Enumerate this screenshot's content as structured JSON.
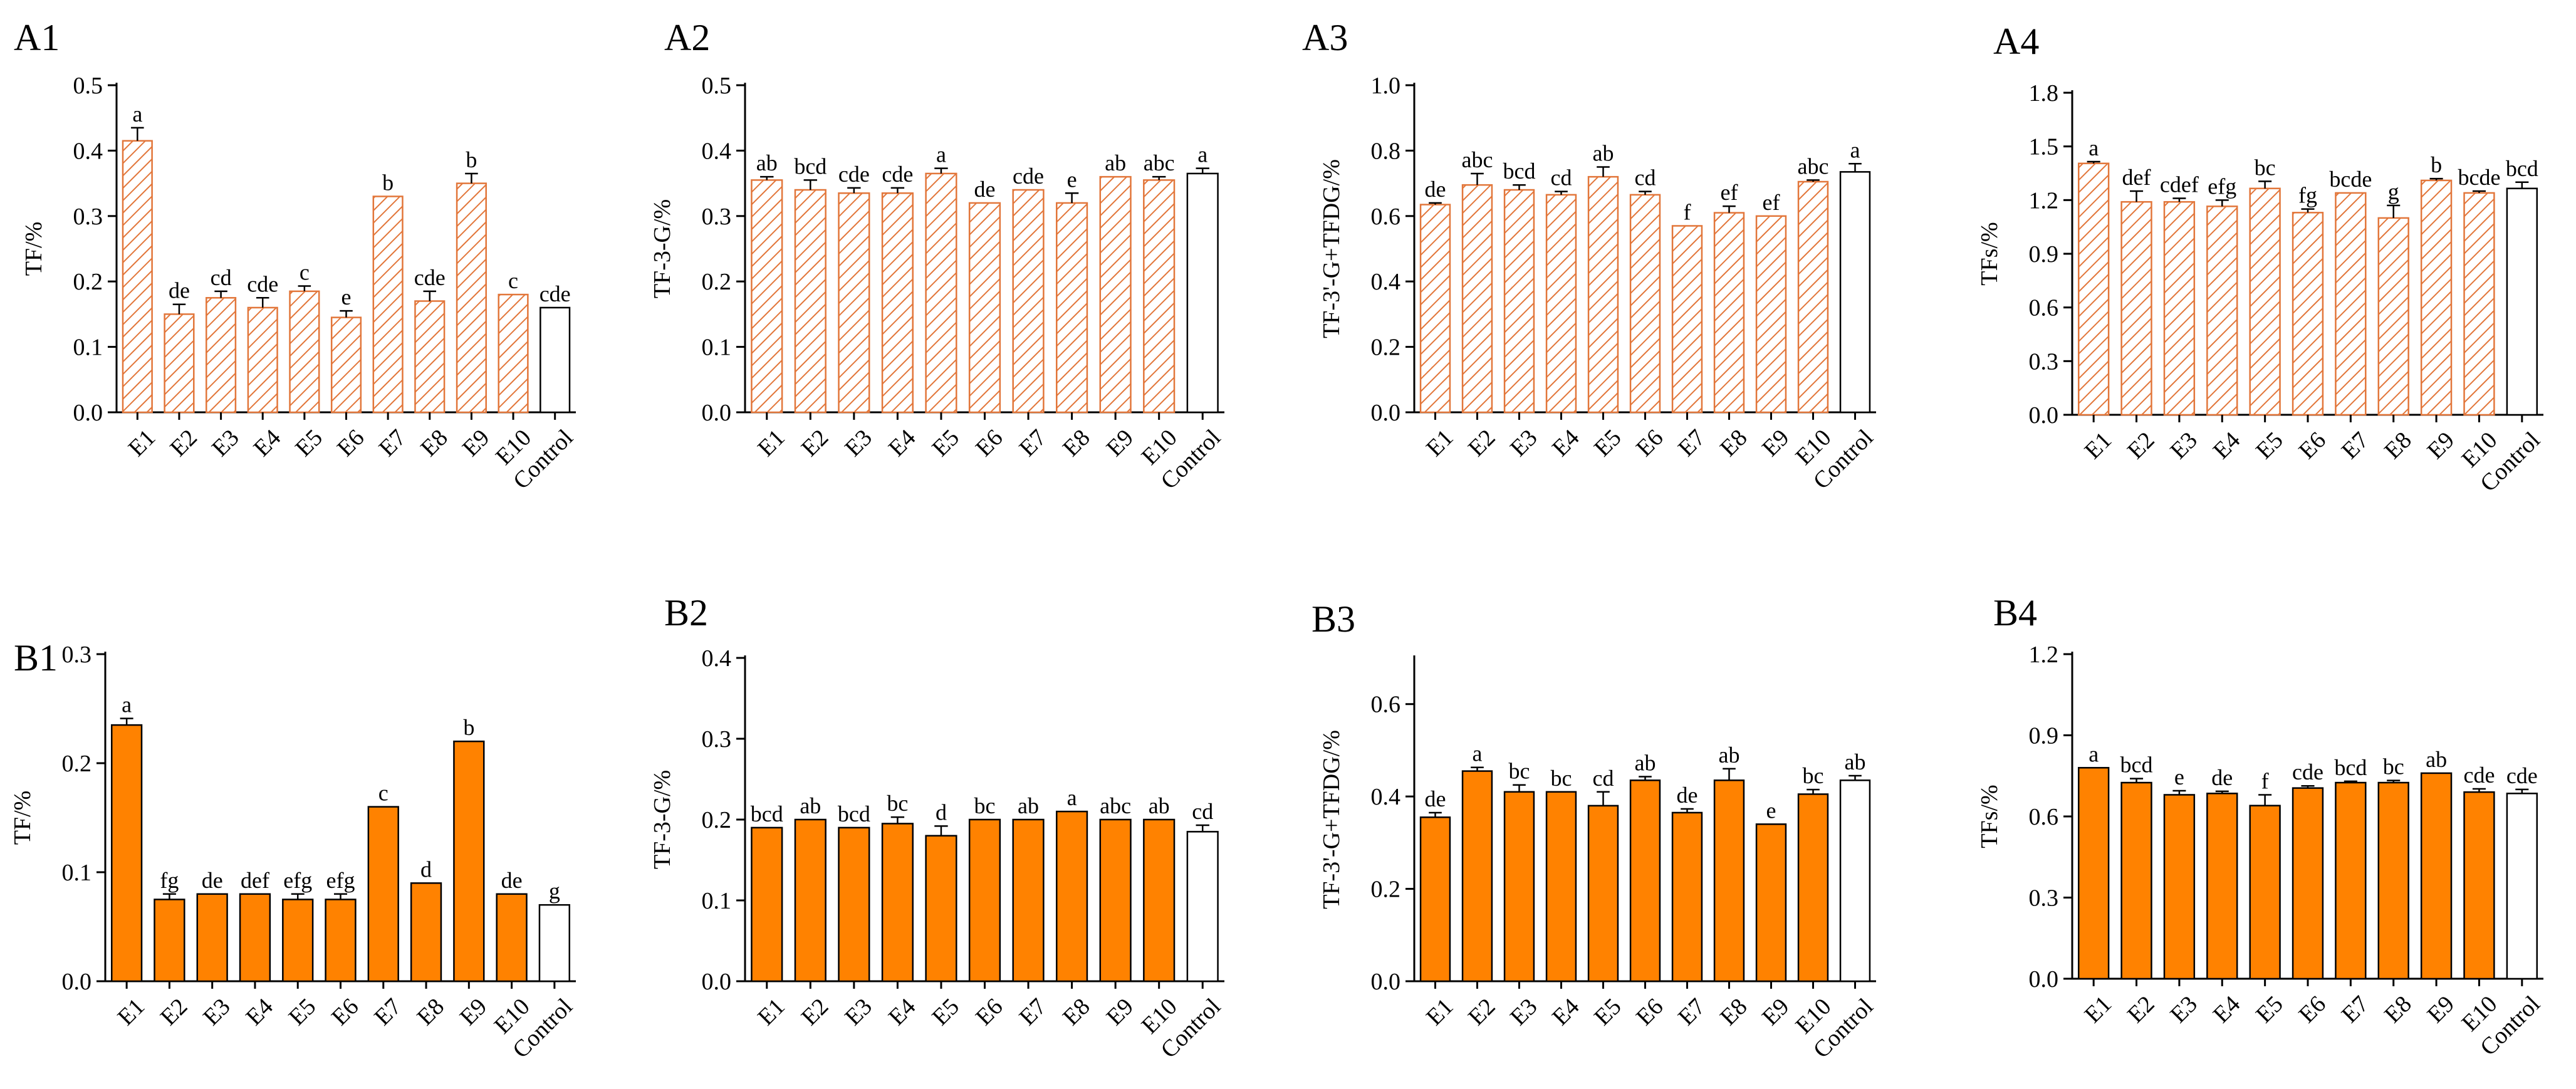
{
  "colors": {
    "hatch_stroke": "#E2763A",
    "hatch_fill": "#FFFFFF",
    "solid_fill": "#FF8200",
    "control_fill": "#FFFFFF",
    "axis": "#000000"
  },
  "chart_data": [
    {
      "panel": "A1",
      "type": "bar",
      "fill": "hatched",
      "ylabel": "TF/%",
      "ylim": [
        0,
        0.5
      ],
      "yticks": [
        "0.0",
        "0.1",
        "0.2",
        "0.3",
        "0.4",
        "0.5"
      ],
      "categories": [
        "E1",
        "E2",
        "E3",
        "E4",
        "E5",
        "E6",
        "E7",
        "E8",
        "E9",
        "E10",
        "Control"
      ],
      "values": [
        0.415,
        0.15,
        0.175,
        0.16,
        0.185,
        0.145,
        0.33,
        0.17,
        0.35,
        0.18,
        0.16
      ],
      "errors": [
        0.02,
        0.015,
        0.01,
        0.015,
        0.008,
        0.01,
        0,
        0.015,
        0.015,
        0,
        0
      ],
      "labels": [
        "a",
        "de",
        "cd",
        "cde",
        "c",
        "e",
        "b",
        "cde",
        "b",
        "c",
        "cde"
      ]
    },
    {
      "panel": "A2",
      "type": "bar",
      "fill": "hatched",
      "ylabel": "TF-3-G/%",
      "ylim": [
        0,
        0.5
      ],
      "yticks": [
        "0.0",
        "0.1",
        "0.2",
        "0.3",
        "0.4",
        "0.5"
      ],
      "categories": [
        "E1",
        "E2",
        "E3",
        "E4",
        "E5",
        "E6",
        "E7",
        "E8",
        "E9",
        "E10",
        "Control"
      ],
      "values": [
        0.355,
        0.34,
        0.335,
        0.335,
        0.365,
        0.32,
        0.34,
        0.32,
        0.36,
        0.355,
        0.365
      ],
      "errors": [
        0.005,
        0.015,
        0.008,
        0.008,
        0.008,
        0,
        0,
        0.015,
        0,
        0.005,
        0.008
      ],
      "labels": [
        "ab",
        "bcd",
        "cde",
        "cde",
        "a",
        "de",
        "cde",
        "e",
        "ab",
        "abc",
        "a"
      ]
    },
    {
      "panel": "A3",
      "type": "bar",
      "fill": "hatched",
      "ylabel": "TF-3'-G+TFDG/%",
      "ylim": [
        0,
        1.0
      ],
      "yticks": [
        "0.0",
        "0.2",
        "0.4",
        "0.6",
        "0.8",
        "1.0"
      ],
      "categories": [
        "E1",
        "E2",
        "E3",
        "E4",
        "E5",
        "E6",
        "E7",
        "E8",
        "E9",
        "E10",
        "Control"
      ],
      "values": [
        0.635,
        0.695,
        0.68,
        0.665,
        0.72,
        0.665,
        0.57,
        0.61,
        0.6,
        0.705,
        0.735
      ],
      "errors": [
        0.005,
        0.035,
        0.015,
        0.01,
        0.03,
        0.01,
        0,
        0.02,
        0,
        0.005,
        0.025
      ],
      "labels": [
        "de",
        "abc",
        "bcd",
        "cd",
        "ab",
        "cd",
        "f",
        "ef",
        "ef",
        "abc",
        "a"
      ]
    },
    {
      "panel": "A4",
      "type": "bar",
      "fill": "hatched",
      "ylabel": "TFs/%",
      "ylim": [
        0,
        1.8
      ],
      "yticks": [
        "0.0",
        "0.3",
        "0.6",
        "0.9",
        "1.2",
        "1.5",
        "1.8"
      ],
      "categories": [
        "E1",
        "E2",
        "E3",
        "E4",
        "E5",
        "E6",
        "E7",
        "E8",
        "E9",
        "E10",
        "Control"
      ],
      "values": [
        1.405,
        1.19,
        1.19,
        1.165,
        1.265,
        1.13,
        1.24,
        1.1,
        1.31,
        1.24,
        1.265
      ],
      "errors": [
        0.01,
        0.06,
        0.02,
        0.035,
        0.04,
        0.02,
        0,
        0.07,
        0.01,
        0.01,
        0.035
      ],
      "labels": [
        "a",
        "def",
        "cdef",
        "efg",
        "bc",
        "fg",
        "bcde",
        "g",
        "b",
        "bcde",
        "bcd"
      ]
    },
    {
      "panel": "B1",
      "type": "bar",
      "fill": "solid",
      "ylabel": "TF/%",
      "ylim": [
        0,
        0.3
      ],
      "yticks": [
        "0.0",
        "0.1",
        "0.2",
        "0.3"
      ],
      "categories": [
        "E1",
        "E2",
        "E3",
        "E4",
        "E5",
        "E6",
        "E7",
        "E8",
        "E9",
        "E10",
        "Control"
      ],
      "values": [
        0.235,
        0.075,
        0.08,
        0.08,
        0.075,
        0.075,
        0.16,
        0.09,
        0.22,
        0.08,
        0.07
      ],
      "errors": [
        0.006,
        0.005,
        0,
        0,
        0.005,
        0.005,
        0,
        0,
        0,
        0,
        0
      ],
      "labels": [
        "a",
        "fg",
        "de",
        "def",
        "efg",
        "efg",
        "c",
        "d",
        "b",
        "de",
        "g"
      ]
    },
    {
      "panel": "B2",
      "type": "bar",
      "fill": "solid",
      "ylabel": "TF-3-G/%",
      "ylim": [
        0,
        0.4
      ],
      "yticks": [
        "0.0",
        "0.1",
        "0.2",
        "0.3",
        "0.4"
      ],
      "categories": [
        "E1",
        "E2",
        "E3",
        "E4",
        "E5",
        "E6",
        "E7",
        "E8",
        "E9",
        "E10",
        "Control"
      ],
      "values": [
        0.19,
        0.2,
        0.19,
        0.195,
        0.18,
        0.2,
        0.2,
        0.21,
        0.2,
        0.2,
        0.185
      ],
      "errors": [
        0,
        0,
        0,
        0.008,
        0.012,
        0,
        0,
        0,
        0,
        0,
        0.008
      ],
      "labels": [
        "bcd",
        "ab",
        "bcd",
        "bc",
        "d",
        "bc",
        "ab",
        "a",
        "abc",
        "ab",
        "cd"
      ]
    },
    {
      "panel": "B3",
      "type": "bar",
      "fill": "solid",
      "ylabel": "TF-3'-G+TFDG/%",
      "ylim": [
        0,
        0.7
      ],
      "yticks": [
        "0.0",
        "0.2",
        "0.4",
        "0.6"
      ],
      "categories": [
        "E1",
        "E2",
        "E3",
        "E4",
        "E5",
        "E6",
        "E7",
        "E8",
        "E9",
        "E10",
        "Control"
      ],
      "values": [
        0.355,
        0.455,
        0.41,
        0.41,
        0.38,
        0.435,
        0.365,
        0.435,
        0.34,
        0.405,
        0.435
      ],
      "errors": [
        0.01,
        0.008,
        0.015,
        0,
        0.03,
        0.008,
        0.008,
        0.025,
        0,
        0.01,
        0.01
      ],
      "labels": [
        "de",
        "a",
        "bc",
        "bc",
        "cd",
        "ab",
        "de",
        "ab",
        "e",
        "bc",
        "ab"
      ]
    },
    {
      "panel": "B4",
      "type": "bar",
      "fill": "solid",
      "ylabel": "TFs/%",
      "ylim": [
        0,
        1.2
      ],
      "yticks": [
        "0.0",
        "0.3",
        "0.6",
        "0.9",
        "1.2"
      ],
      "categories": [
        "E1",
        "E2",
        "E3",
        "E4",
        "E5",
        "E6",
        "E7",
        "E8",
        "E9",
        "E10",
        "Control"
      ],
      "values": [
        0.78,
        0.725,
        0.68,
        0.685,
        0.64,
        0.705,
        0.725,
        0.725,
        0.76,
        0.69,
        0.685
      ],
      "errors": [
        0,
        0.015,
        0.015,
        0.008,
        0.04,
        0.008,
        0.005,
        0.008,
        0,
        0.012,
        0.015
      ],
      "labels": [
        "a",
        "bcd",
        "e",
        "de",
        "f",
        "cde",
        "bcd",
        "bc",
        "ab",
        "cde",
        "cde"
      ]
    }
  ]
}
